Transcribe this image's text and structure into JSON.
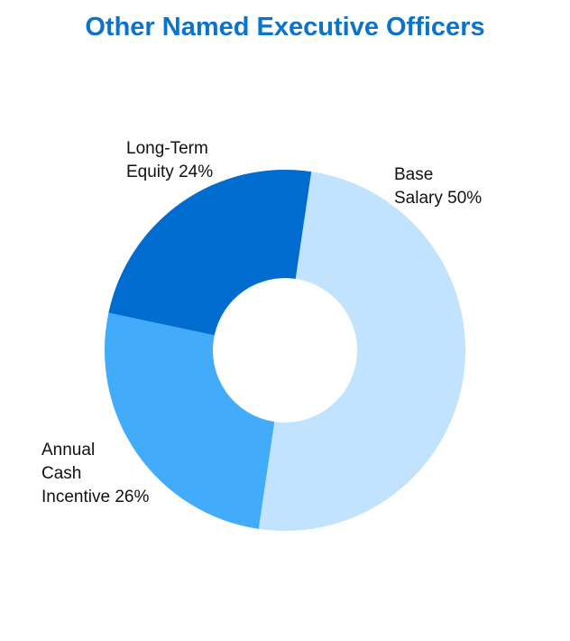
{
  "chart_data": {
    "type": "pie",
    "title": "Other Named Executive Officers",
    "donut": true,
    "slices": [
      {
        "key": "base",
        "name": "Base Salary",
        "value": 50,
        "color": "#c1e3fd",
        "label_lines": [
          "Base",
          "Salary 50%"
        ]
      },
      {
        "key": "annual",
        "name": "Annual Cash Incentive",
        "value": 26,
        "color": "#42acfb",
        "label_lines": [
          "Annual",
          "Cash",
          "Incentive 26%"
        ]
      },
      {
        "key": "equity",
        "name": "Long-Term Equity",
        "value": 24,
        "color": "#016ccf",
        "label_lines": [
          "Long-Term",
          "Equity 24%"
        ]
      }
    ],
    "legend": "none",
    "colors": {
      "title": "#0b73c9",
      "label": "#111111",
      "background": "#ffffff"
    }
  }
}
